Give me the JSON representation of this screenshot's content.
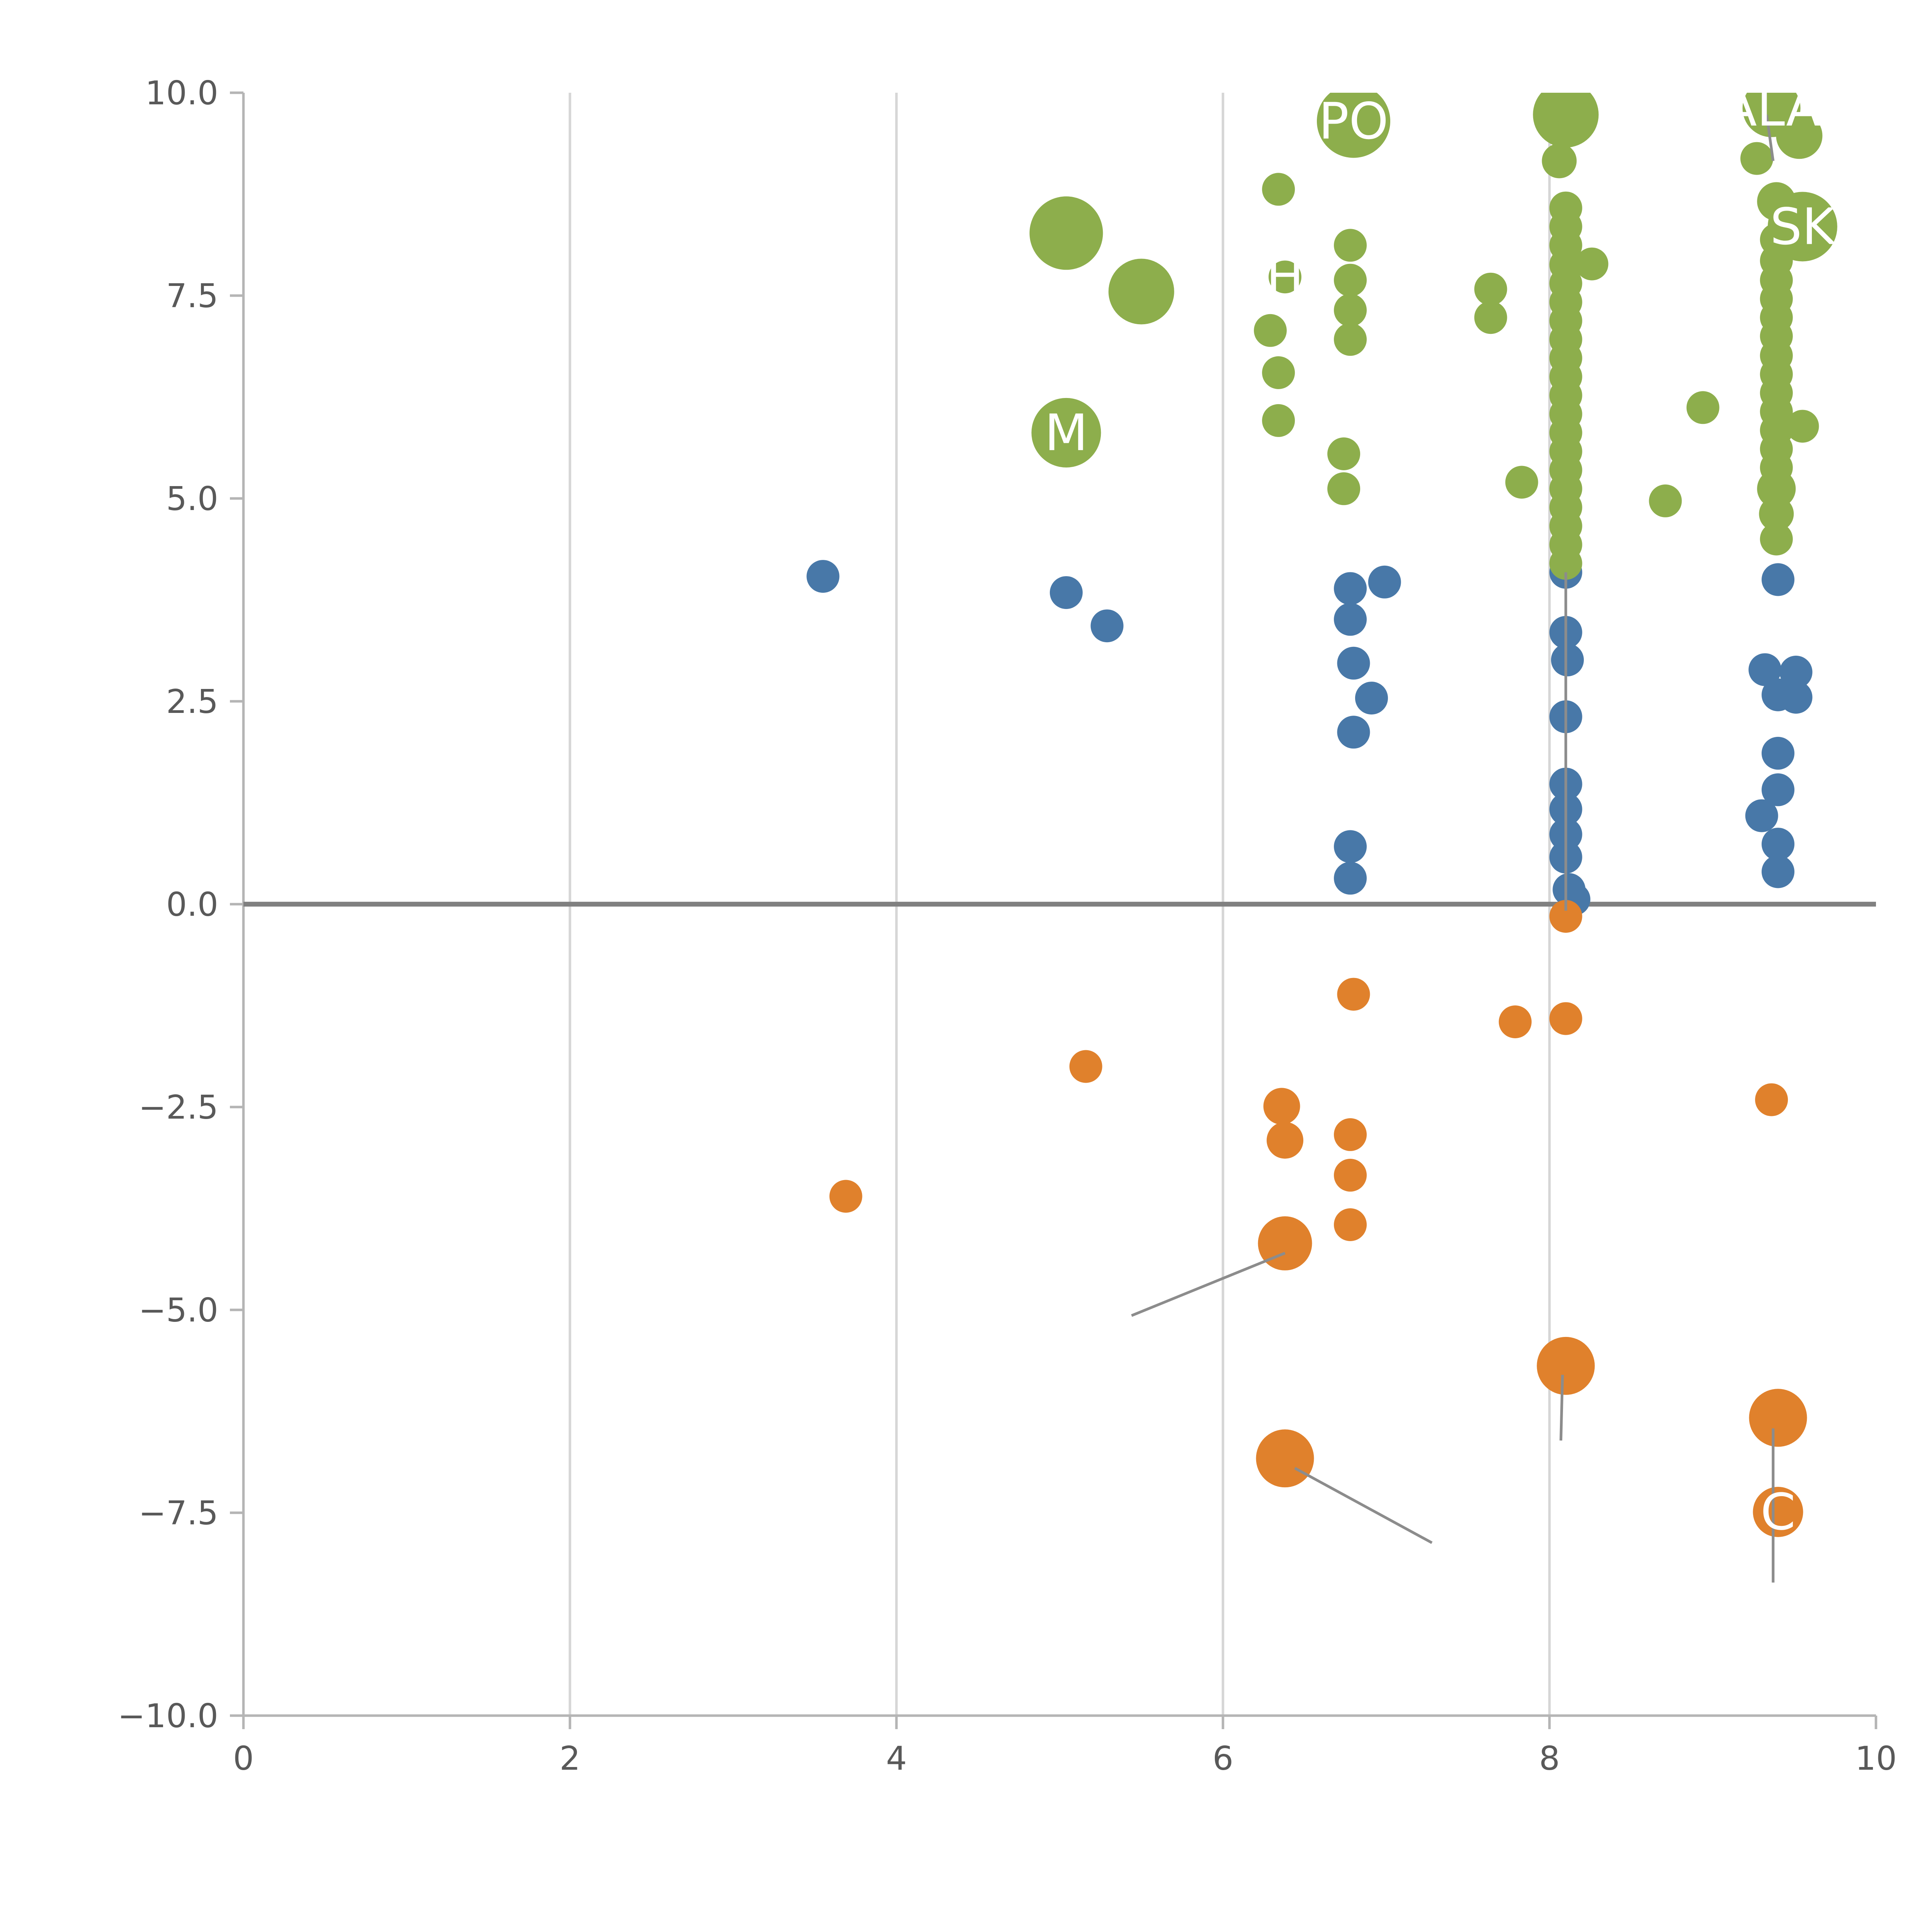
{
  "chart_data": {
    "type": "scatter",
    "title": "",
    "xlabel": "",
    "ylabel": "",
    "legend": "none",
    "grid": "vertical-only",
    "x_axis": {
      "min": 0,
      "max": 10,
      "tick_values": [
        0,
        2,
        4,
        6,
        8,
        10
      ],
      "tick_labels": [
        "0",
        "2",
        "4",
        "6",
        "8",
        "10"
      ],
      "gridlines": [
        2,
        4,
        6,
        8
      ]
    },
    "y_axis": {
      "min": -10,
      "max": 10,
      "tick_values": [
        -10,
        -7.5,
        -5,
        -2.5,
        0,
        2.5,
        5,
        7.5,
        10
      ],
      "tick_labels": [
        "−10.0",
        "−7.5",
        "−5.0",
        "−2.5",
        "0.0",
        "2.5",
        "5.0",
        "7.5",
        "10.0"
      ]
    },
    "zero_line_y": 0,
    "colors": {
      "green_series": "#8dae4c",
      "blue_series": "#4878a8",
      "orange_series": "#e0812c",
      "gridline": "#d6d6d6",
      "spine": "#b5b5b5",
      "zero_line": "#808080",
      "annotation_line": "#8c8c8c",
      "tick_text": "#595959",
      "bubble_label_text": "#ffffff"
    },
    "series": [
      {
        "name": "green-positive-high",
        "color": "#8dae4c",
        "points": [
          [
            5.04,
            8.27,
            19
          ],
          [
            5.5,
            7.55,
            17
          ],
          [
            6.34,
            8.81,
            8.5
          ],
          [
            6.8,
            9.65,
            19
          ],
          [
            8.1,
            9.73,
            17
          ],
          [
            8.06,
            9.16,
            9
          ],
          [
            9.36,
            9.81,
            15
          ],
          [
            9.53,
            9.47,
            12
          ],
          [
            9.27,
            9.19,
            8.5
          ],
          [
            9.55,
            8.35,
            18
          ],
          [
            5.04,
            5.81,
            18
          ],
          [
            6.78,
            8.12,
            8.5
          ],
          [
            6.78,
            7.69,
            8.5
          ],
          [
            6.78,
            7.32,
            8.5
          ],
          [
            6.78,
            6.96,
            8.5
          ],
          [
            6.74,
            5.55,
            8.5
          ],
          [
            6.74,
            5.12,
            8.5
          ],
          [
            6.38,
            7.73,
            8.5
          ],
          [
            6.29,
            7.07,
            8.5
          ],
          [
            6.34,
            6.55,
            8.5
          ],
          [
            6.34,
            5.96,
            8.5
          ],
          [
            7.64,
            7.58,
            8.5
          ],
          [
            7.64,
            7.23,
            8.5
          ],
          [
            8.1,
            8.58,
            8.5
          ],
          [
            8.1,
            8.35,
            8.5
          ],
          [
            8.1,
            8.12,
            8.5
          ],
          [
            8.1,
            7.88,
            8.5
          ],
          [
            8.1,
            7.65,
            8.5
          ],
          [
            8.1,
            7.42,
            8.5
          ],
          [
            8.1,
            7.19,
            8.5
          ],
          [
            8.1,
            6.96,
            8.5
          ],
          [
            8.1,
            6.73,
            8.5
          ],
          [
            8.1,
            6.5,
            8.5
          ],
          [
            8.1,
            6.27,
            8.5
          ],
          [
            8.1,
            6.04,
            8.5
          ],
          [
            8.1,
            5.81,
            8.5
          ],
          [
            8.1,
            5.58,
            8.5
          ],
          [
            8.1,
            5.35,
            8.5
          ],
          [
            8.1,
            5.12,
            8.5
          ],
          [
            8.1,
            4.89,
            8.5
          ],
          [
            8.1,
            4.66,
            8.5
          ],
          [
            8.1,
            4.43,
            8.5
          ],
          [
            8.1,
            4.2,
            8.5
          ],
          [
            8.26,
            7.89,
            8.5
          ],
          [
            7.83,
            5.2,
            8.5
          ],
          [
            8.71,
            4.97,
            8.5
          ],
          [
            8.94,
            6.12,
            8.5
          ],
          [
            9.39,
            8.66,
            10
          ],
          [
            9.39,
            8.19,
            8.5
          ],
          [
            9.39,
            7.93,
            8.5
          ],
          [
            9.39,
            7.69,
            8.5
          ],
          [
            9.39,
            7.46,
            8.5
          ],
          [
            9.39,
            7.23,
            8.5
          ],
          [
            9.39,
            7.0,
            8.5
          ],
          [
            9.39,
            6.76,
            8.5
          ],
          [
            9.39,
            6.53,
            8.5
          ],
          [
            9.39,
            6.3,
            8.5
          ],
          [
            9.39,
            6.07,
            8.5
          ],
          [
            9.39,
            5.84,
            8.5
          ],
          [
            9.39,
            5.61,
            8.5
          ],
          [
            9.39,
            5.38,
            8.5
          ],
          [
            9.39,
            5.12,
            10
          ],
          [
            9.39,
            4.81,
            9
          ],
          [
            9.39,
            4.5,
            8.5
          ],
          [
            9.55,
            5.89,
            8.5
          ]
        ]
      },
      {
        "name": "blue-positive-low",
        "color": "#4878a8",
        "points": [
          [
            3.55,
            4.04,
            8.5
          ],
          [
            5.04,
            3.84,
            8.5
          ],
          [
            5.29,
            3.43,
            8.5
          ],
          [
            6.78,
            3.89,
            8.5
          ],
          [
            6.78,
            3.51,
            8.5
          ],
          [
            6.99,
            3.97,
            8.5
          ],
          [
            6.8,
            2.97,
            8.5
          ],
          [
            6.91,
            2.54,
            8.5
          ],
          [
            6.8,
            2.12,
            8.5
          ],
          [
            6.78,
            0.71,
            8.5
          ],
          [
            6.78,
            0.32,
            8.5
          ],
          [
            8.1,
            4.09,
            8.5
          ],
          [
            8.1,
            3.35,
            8.5
          ],
          [
            8.11,
            3.01,
            8.5
          ],
          [
            8.1,
            2.31,
            8.5
          ],
          [
            8.1,
            1.48,
            8.5
          ],
          [
            8.1,
            1.17,
            8.5
          ],
          [
            8.1,
            0.86,
            8.5
          ],
          [
            8.1,
            0.58,
            8.5
          ],
          [
            8.12,
            0.18,
            8.5
          ],
          [
            8.15,
            0.06,
            8.5
          ],
          [
            9.4,
            4.0,
            8.5
          ],
          [
            9.32,
            2.89,
            8.5
          ],
          [
            9.51,
            2.86,
            8.5
          ],
          [
            9.4,
            2.58,
            8.5
          ],
          [
            9.51,
            2.55,
            8.5
          ],
          [
            9.4,
            1.86,
            8.5
          ],
          [
            9.4,
            1.41,
            8.5
          ],
          [
            9.3,
            1.09,
            8.5
          ],
          [
            9.4,
            0.74,
            8.5
          ],
          [
            9.4,
            0.4,
            8.5
          ]
        ]
      },
      {
        "name": "orange-negative",
        "color": "#e0812c",
        "points": [
          [
            8.1,
            -0.15,
            8.5
          ],
          [
            6.8,
            -1.11,
            8.5
          ],
          [
            7.79,
            -1.45,
            8.5
          ],
          [
            8.1,
            -1.41,
            8.5
          ],
          [
            5.16,
            -2.0,
            8.5
          ],
          [
            9.36,
            -2.41,
            8.5
          ],
          [
            6.36,
            -2.49,
            9.5
          ],
          [
            6.38,
            -2.91,
            9.5
          ],
          [
            6.78,
            -2.84,
            8.5
          ],
          [
            6.78,
            -3.34,
            8.5
          ],
          [
            6.78,
            -3.95,
            8.5
          ],
          [
            3.69,
            -3.6,
            8.5
          ],
          [
            6.38,
            -4.18,
            14
          ],
          [
            8.1,
            -5.69,
            15
          ],
          [
            6.38,
            -6.83,
            15
          ],
          [
            9.4,
            -6.33,
            15
          ],
          [
            9.4,
            -7.49,
            13
          ]
        ]
      }
    ],
    "bubble_labels": [
      {
        "text": "PO",
        "x": 6.8,
        "y": 9.65
      },
      {
        "text": "ALA",
        "x": 9.36,
        "y": 9.81
      },
      {
        "text": "SK",
        "x": 9.55,
        "y": 8.35
      },
      {
        "text": "M",
        "x": 5.04,
        "y": 5.81
      },
      {
        "text": "H",
        "x": 6.38,
        "y": 7.73
      },
      {
        "text": "C",
        "x": 9.4,
        "y": -7.49
      }
    ],
    "annotation_lines": [
      {
        "x1": 6.38,
        "y1": -4.3,
        "x2": 5.44,
        "y2": -5.07
      },
      {
        "x1": 8.08,
        "y1": -5.8,
        "x2": 8.07,
        "y2": -6.61
      },
      {
        "x1": 6.44,
        "y1": -6.95,
        "x2": 7.28,
        "y2": -7.87
      },
      {
        "x1": 9.37,
        "y1": -6.46,
        "x2": 9.37,
        "y2": -8.36
      },
      {
        "x1": 9.33,
        "y1": 9.73,
        "x2": 9.37,
        "y2": 9.16
      },
      {
        "x1": 8.1,
        "y1": 4.09,
        "x2": 8.1,
        "y2": -0.08
      }
    ]
  }
}
